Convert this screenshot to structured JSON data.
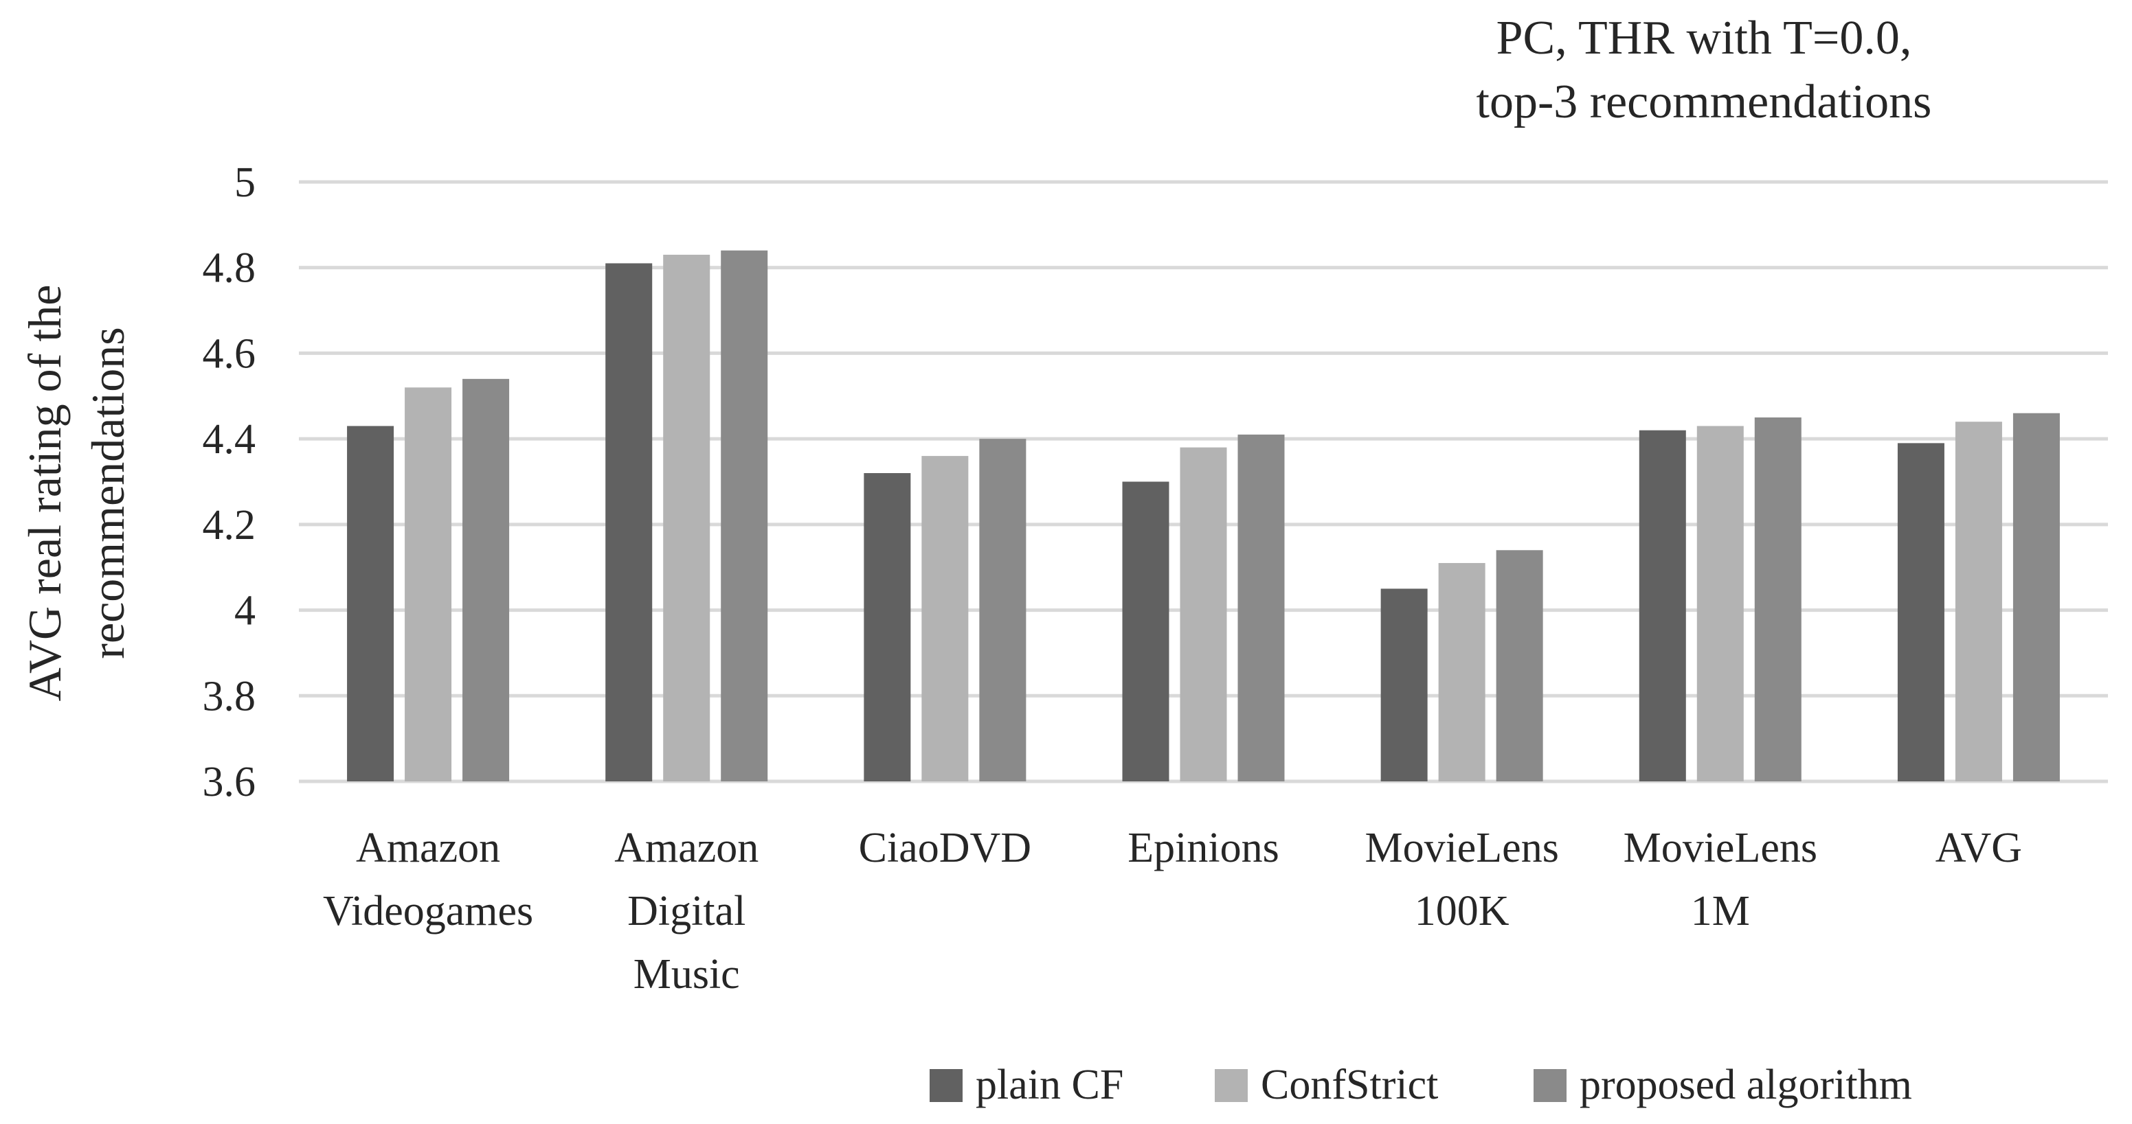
{
  "chart_data": {
    "type": "bar",
    "title_lines": [
      "PC, THR with T=0.0,",
      "top-3 recommendations"
    ],
    "ylabel_lines": [
      "AVG real rating of the",
      "recommendations"
    ],
    "xlabel": "",
    "ylim": [
      3.6,
      5.0
    ],
    "yticks": [
      3.6,
      3.8,
      4.0,
      4.2,
      4.4,
      4.6,
      4.8,
      5.0
    ],
    "ytick_labels": [
      "3.6",
      "3.8",
      "4",
      "4.2",
      "4.4",
      "4.6",
      "4.8",
      "5"
    ],
    "grid": true,
    "legend_position": "bottom-right",
    "categories": [
      "Amazon Videogames",
      "Amazon Digital Music",
      "CiaoDVD",
      "Epinions",
      "MovieLens 100K",
      "MovieLens 1M",
      "AVG"
    ],
    "category_label_lines": [
      [
        "Amazon",
        "Videogames"
      ],
      [
        "Amazon",
        "Digital",
        "Music"
      ],
      [
        "CiaoDVD"
      ],
      [
        "Epinions"
      ],
      [
        "MovieLens",
        "100K"
      ],
      [
        "MovieLens",
        "1M"
      ],
      [
        "AVG"
      ]
    ],
    "series": [
      {
        "name": "plain CF",
        "color": "#616161",
        "values": [
          4.43,
          4.81,
          4.32,
          4.3,
          4.05,
          4.42,
          4.39
        ]
      },
      {
        "name": "ConfStrict",
        "color": "#b3b3b3",
        "values": [
          4.52,
          4.83,
          4.36,
          4.38,
          4.11,
          4.43,
          4.44
        ]
      },
      {
        "name": "proposed algorithm",
        "color": "#8a8a8a",
        "values": [
          4.54,
          4.84,
          4.4,
          4.41,
          4.14,
          4.45,
          4.46
        ]
      }
    ],
    "colors": {
      "gridline": "#d9d9d9",
      "text": "#262626",
      "background": "#ffffff"
    }
  }
}
